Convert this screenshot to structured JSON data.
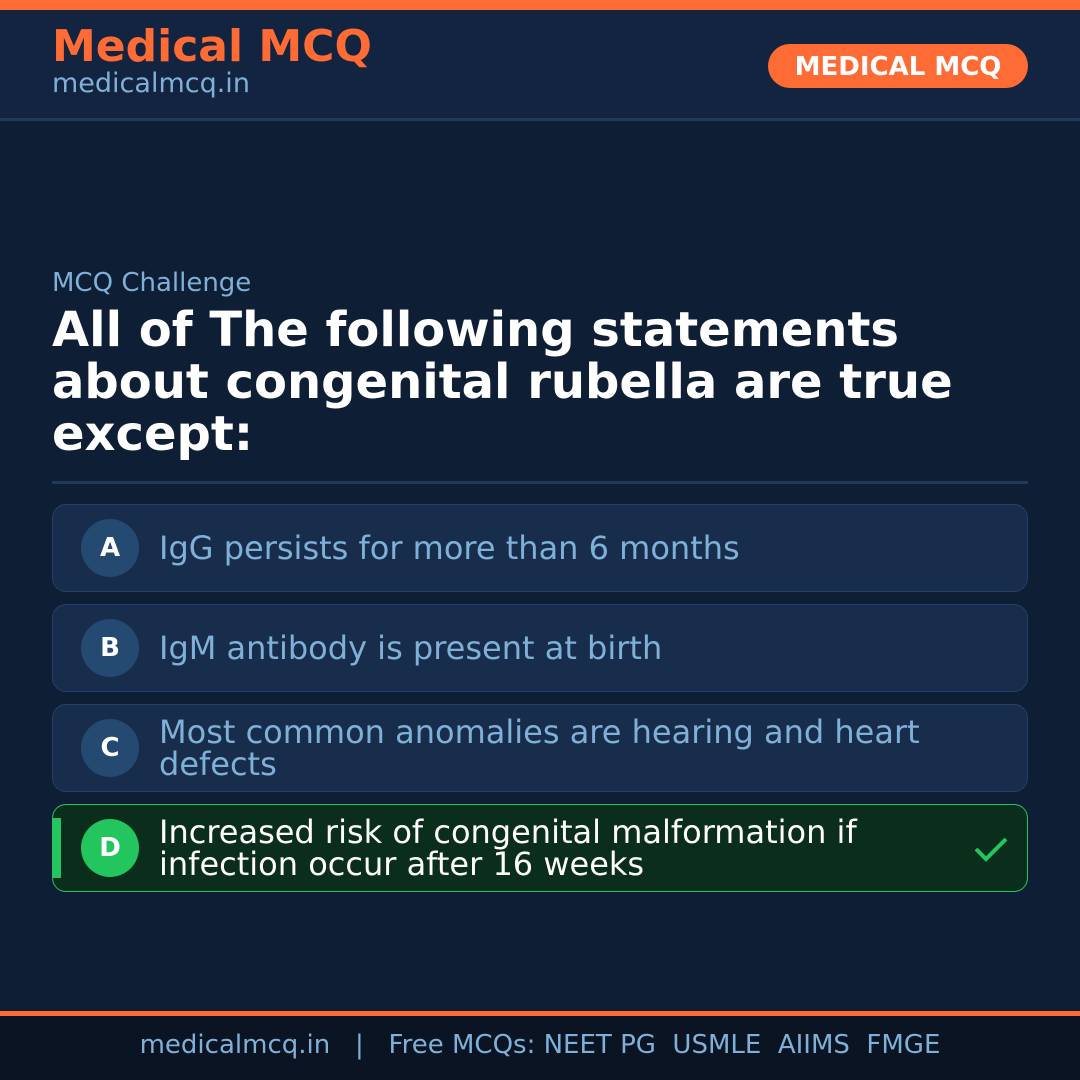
{
  "header": {
    "brand": "Medical MCQ",
    "site": "medicalmcq.in",
    "badge": "MEDICAL MCQ"
  },
  "question": {
    "label": "MCQ Challenge",
    "text": "All of The following statements about congenital rubella are true except:"
  },
  "options": [
    {
      "letter": "A",
      "text": "IgG persists for more than 6 months",
      "correct": false
    },
    {
      "letter": "B",
      "text": "IgM antibody is present at birth",
      "correct": false
    },
    {
      "letter": "C",
      "text": "Most common anomalies are hearing and heart defects",
      "correct": false
    },
    {
      "letter": "D",
      "text": "Increased risk of congenital malformation if infection occur after 16 weeks",
      "correct": true,
      "icon": "check-icon"
    }
  ],
  "footer": {
    "text": "medicalmcq.in   |   Free MCQs: NEET PG  USMLE  AIIMS  FMGE"
  },
  "colors": {
    "accent": "#ff6b35",
    "correct": "#22c55e",
    "background": "#0e1e35"
  }
}
